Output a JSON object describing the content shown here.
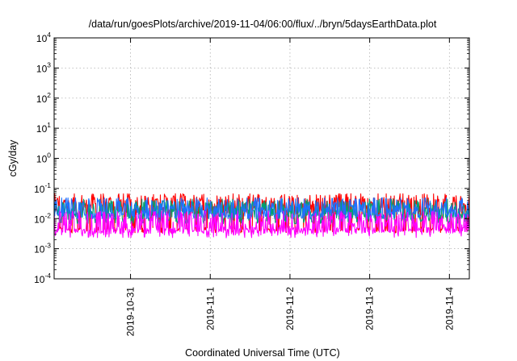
{
  "chart_data": {
    "type": "line",
    "title": "/data/run/goesPlots/archive/2019-11-04/06:00/flux/../bryn/5daysEarthData.plot",
    "xlabel": "Coordinated Universal Time (UTC)",
    "ylabel": "cGy/day",
    "yscale": "log",
    "ylim": [
      0.0001,
      10000
    ],
    "xlim": [
      "2019-10-30T01:00",
      "2019-11-04T06:00"
    ],
    "grid": true,
    "y_ticks": [
      {
        "value": 0.0001,
        "base": "10",
        "exp": "-4"
      },
      {
        "value": 0.001,
        "base": "10",
        "exp": "-3"
      },
      {
        "value": 0.01,
        "base": "10",
        "exp": "-2"
      },
      {
        "value": 0.1,
        "base": "10",
        "exp": "-1"
      },
      {
        "value": 1,
        "base": "10",
        "exp": "0"
      },
      {
        "value": 10,
        "base": "10",
        "exp": "1"
      },
      {
        "value": 100,
        "base": "10",
        "exp": "2"
      },
      {
        "value": 1000,
        "base": "10",
        "exp": "3"
      },
      {
        "value": 10000,
        "base": "10",
        "exp": "4"
      }
    ],
    "x_ticks": [
      {
        "value": "2019-10-31T00:00",
        "label": "2019-10-31"
      },
      {
        "value": "2019-11-01T00:00",
        "label": "2019-11-1"
      },
      {
        "value": "2019-11-02T00:00",
        "label": "2019-11-2"
      },
      {
        "value": "2019-11-03T00:00",
        "label": "2019-11-3"
      },
      {
        "value": "2019-11-04T00:00",
        "label": "2019-11-4"
      }
    ],
    "series": [
      {
        "color": "#ff0000",
        "base": 0.03,
        "variation": 0.35,
        "dip_low": 0.0042
      },
      {
        "color": "#00a070",
        "base": 0.02,
        "variation": 0.3,
        "dip_low": 0.0085
      },
      {
        "color": "#1f6fff",
        "base": 0.022,
        "variation": 0.35,
        "dip_low": 0.012
      },
      {
        "color": "#ff00ff",
        "base": 0.0065,
        "variation": 0.45,
        "dip_low": 0.004
      }
    ]
  }
}
